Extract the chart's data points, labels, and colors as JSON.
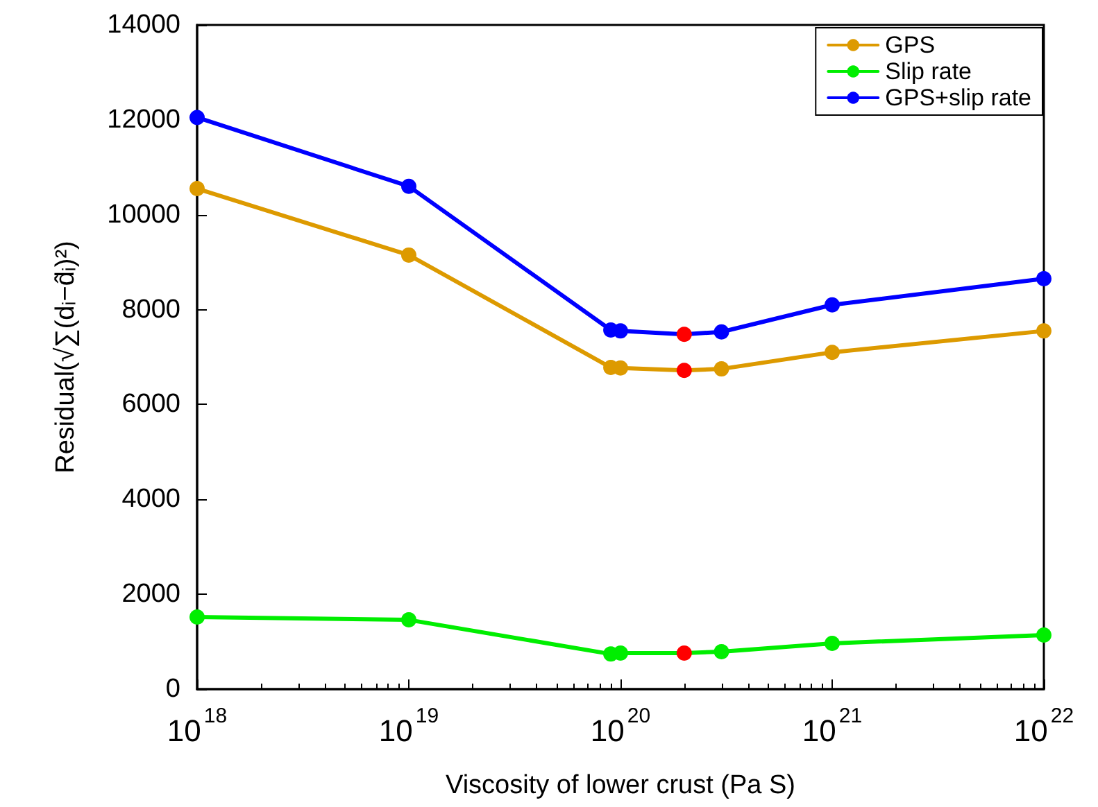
{
  "chart_data": {
    "type": "line",
    "xlabel": "Viscosity of lower crust (Pa S)",
    "ylabel": "Residual(√∑(dᵢ−d̂ᵢ)²)",
    "log": "x",
    "grid": false,
    "legend": "top right",
    "marker": "circle",
    "line_style": "solid",
    "x": [
      1e+18,
      1e+19,
      9e+19,
      1e+20,
      2e+20,
      3e+20,
      1e+21,
      1e+22
    ],
    "xlim": [
      1e+18,
      1e+22
    ],
    "xticks": [
      {
        "value": 1e+18,
        "label": "10$^{18}$"
      },
      {
        "value": 1e+19,
        "label": "10$^{19}$"
      },
      {
        "value": 1e+20,
        "label": "10$^{20}$"
      },
      {
        "value": 1e+21,
        "label": "10$^{21}$"
      },
      {
        "value": 1e+22,
        "label": "10$^{22}$"
      }
    ],
    "ylim": [
      0,
      14000
    ],
    "yticks": [
      0,
      2000,
      4000,
      6000,
      8000,
      10000,
      12000,
      14000
    ],
    "series": [
      {
        "name": "GPS",
        "color": "#dd9a00",
        "values": [
          10550,
          9150,
          6780,
          6770,
          6720,
          6750,
          7100,
          7550
        ],
        "colors": [
          "#dd9a00",
          "#dd9a00",
          "#dd9a00",
          "#dd9a00",
          "#ff0000",
          "#dd9a00",
          "#dd9a00",
          "#dd9a00"
        ]
      },
      {
        "name": "Slip rate",
        "color": "#00ee00",
        "values": [
          1520,
          1460,
          740,
          760,
          760,
          790,
          965,
          1140
        ],
        "colors": [
          "#00ee00",
          "#00ee00",
          "#00ee00",
          "#00ee00",
          "#ff0000",
          "#00ee00",
          "#00ee00",
          "#00ee00"
        ]
      },
      {
        "name": "GPS+slip rate",
        "color": "#0000ff",
        "values": [
          12050,
          10600,
          7570,
          7550,
          7480,
          7530,
          8100,
          8650
        ],
        "colors": [
          "#0000ff",
          "#0000ff",
          "#0000ff",
          "#0000ff",
          "#ff0000",
          "#0000ff",
          "#0000ff",
          "#0000ff"
        ]
      }
    ]
  }
}
